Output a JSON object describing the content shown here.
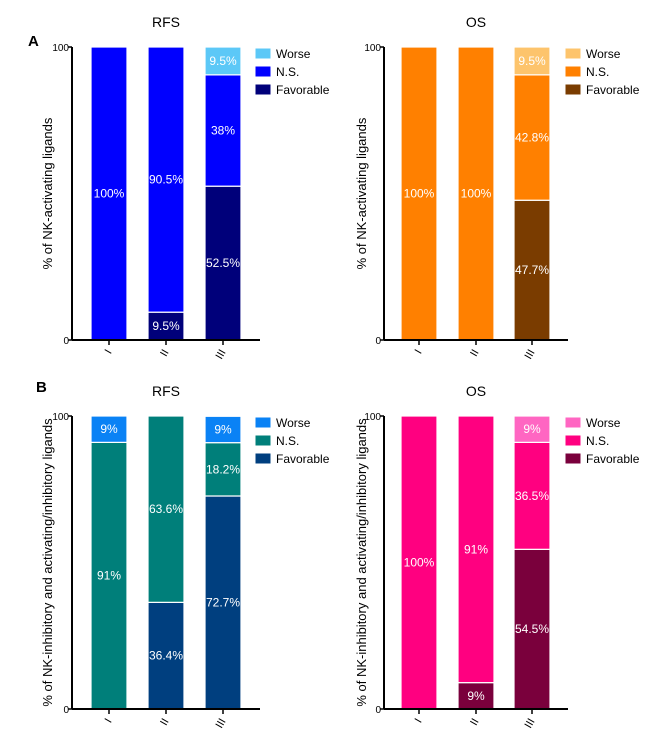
{
  "chart_data": [
    {
      "type": "bar",
      "stacked": true,
      "panel": "A",
      "title": "RFS",
      "ylabel": "% of NK-activating ligands",
      "ylim": [
        0,
        100
      ],
      "yticks": [
        "0",
        "100"
      ],
      "categories": [
        "I",
        "II",
        "III"
      ],
      "legend_position": "right",
      "series": [
        {
          "name": "Favorable",
          "color": "#00007a",
          "values": [
            0,
            9.5,
            52.5
          ],
          "labels": [
            "",
            "9.5%",
            "52.5%"
          ]
        },
        {
          "name": "N.S.",
          "color": "#0000ff",
          "values": [
            100,
            90.5,
            38
          ],
          "labels": [
            "100%",
            "90.5%",
            "38%"
          ]
        },
        {
          "name": "Worse",
          "color": "#5cc8f7",
          "values": [
            0,
            0,
            9.5
          ],
          "labels": [
            "",
            "",
            "9.5%"
          ]
        }
      ]
    },
    {
      "type": "bar",
      "stacked": true,
      "panel": "",
      "title": "OS",
      "ylabel": "% of NK-activating ligands",
      "ylim": [
        0,
        100
      ],
      "yticks": [
        "0",
        "100"
      ],
      "categories": [
        "I",
        "II",
        "III"
      ],
      "legend_position": "right",
      "series": [
        {
          "name": "Favorable",
          "color": "#7a3c00",
          "values": [
            0,
            0,
            47.7
          ],
          "labels": [
            "",
            "",
            "47.7%"
          ]
        },
        {
          "name": "N.S.",
          "color": "#ff8000",
          "values": [
            100,
            100,
            42.8
          ],
          "labels": [
            "100%",
            "100%",
            "42.8%"
          ]
        },
        {
          "name": "Worse",
          "color": "#fdc46c",
          "values": [
            0,
            0,
            9.5
          ],
          "labels": [
            "",
            "",
            "9.5%"
          ]
        }
      ]
    },
    {
      "type": "bar",
      "stacked": true,
      "panel": "B",
      "title": "RFS",
      "ylabel": "% of NK-inhibitory and activating/inhibitory ligands",
      "ylim": [
        0,
        100
      ],
      "yticks": [
        "0",
        "100"
      ],
      "categories": [
        "I",
        "II",
        "III"
      ],
      "legend_position": "right",
      "series": [
        {
          "name": "Favorable",
          "color": "#003f7f",
          "values": [
            0,
            36.4,
            72.7
          ],
          "labels": [
            "",
            "36.4%",
            "72.7%"
          ]
        },
        {
          "name": "N.S.",
          "color": "#007f7a",
          "values": [
            91,
            63.6,
            18.2
          ],
          "labels": [
            "91%",
            "63.6%",
            "18.2%"
          ]
        },
        {
          "name": "Worse",
          "color": "#0a82f5",
          "values": [
            9,
            0,
            9
          ],
          "labels": [
            "9%",
            "",
            "9%"
          ]
        }
      ]
    },
    {
      "type": "bar",
      "stacked": true,
      "panel": "",
      "title": "OS",
      "ylabel": "% of NK-inhibitory and activating/inhibitory ligands",
      "ylim": [
        0,
        100
      ],
      "yticks": [
        "0",
        "100"
      ],
      "categories": [
        "I",
        "II",
        "III"
      ],
      "legend_position": "right",
      "series": [
        {
          "name": "Favorable",
          "color": "#7a003c",
          "values": [
            0,
            9,
            54.5
          ],
          "labels": [
            "",
            "9%",
            "54.5%"
          ]
        },
        {
          "name": "N.S.",
          "color": "#ff0080",
          "values": [
            100,
            91,
            36.5
          ],
          "labels": [
            "100%",
            "91%",
            "36.5%"
          ]
        },
        {
          "name": "Worse",
          "color": "#ff66c2",
          "values": [
            0,
            0,
            9
          ],
          "labels": [
            "",
            "",
            "9%"
          ]
        }
      ]
    }
  ]
}
